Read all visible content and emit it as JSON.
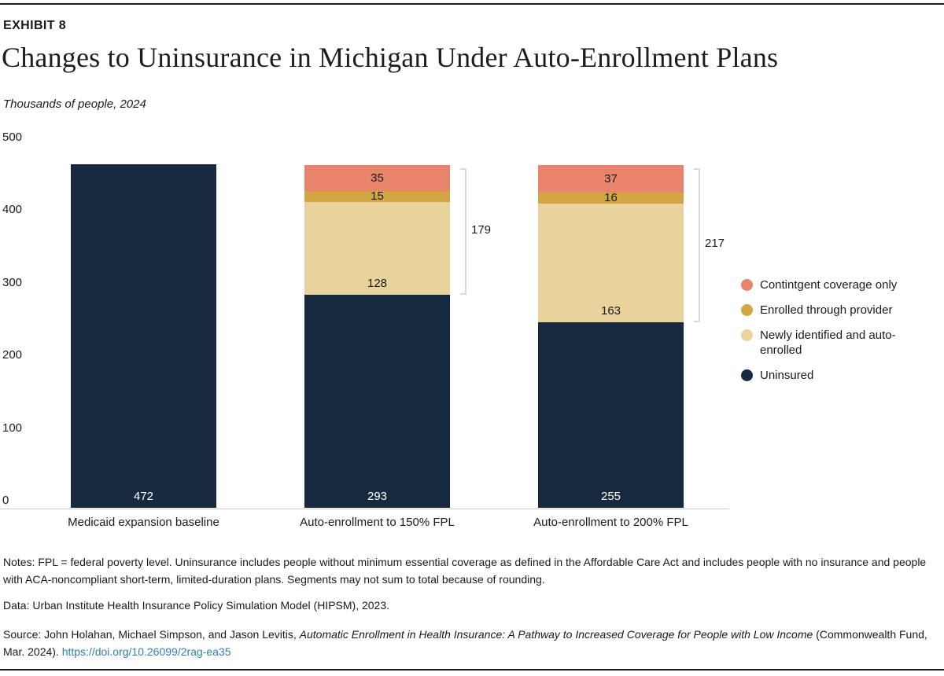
{
  "header": {
    "exhibit": "EXHIBIT 8",
    "title": "Changes to Uninsurance in Michigan Under Auto-Enrollment Plans",
    "subtitle": "Thousands of people, 2024"
  },
  "chart_data": {
    "type": "bar",
    "stacked": true,
    "title": "Changes to Uninsurance in Michigan Under Auto-Enrollment Plans",
    "units": "Thousands of people, 2024",
    "categories": [
      "Medicaid expansion baseline",
      "Auto-enrollment to 150% FPL",
      "Auto-enrollment to 200% FPL"
    ],
    "series": [
      {
        "name": "Uninsured",
        "color": "#17293f",
        "text_color": "#ffffff",
        "label_pos": "bottom",
        "values": [
          472,
          293,
          255
        ]
      },
      {
        "name": "Newly identified and auto-enrolled",
        "color": "#e8d39c",
        "text_color": "#1a1a1a",
        "label_pos": "bottom",
        "values": [
          null,
          128,
          163
        ]
      },
      {
        "name": "Enrolled through provider",
        "color": "#d1a643",
        "text_color": "#1a1a1a",
        "label_pos": "center",
        "values": [
          null,
          15,
          16
        ]
      },
      {
        "name": "Contintgent coverage only",
        "color": "#e9846c",
        "text_color": "#1a1a1a",
        "label_pos": "center",
        "values": [
          null,
          35,
          37
        ]
      }
    ],
    "brackets": [
      {
        "category_index": 1,
        "label": "179"
      },
      {
        "category_index": 2,
        "label": "217"
      }
    ],
    "ylim": [
      0,
      500
    ],
    "yticks": [
      0,
      100,
      200,
      300,
      400,
      500
    ],
    "grid": false,
    "legend_position": "right"
  },
  "legend": {
    "items": [
      {
        "label": "Contintgent coverage only",
        "color": "#e9846c"
      },
      {
        "label": "Enrolled through provider",
        "color": "#d1a643"
      },
      {
        "label": "Newly identified and auto-enrolled",
        "color": "#e8d39c"
      },
      {
        "label": "Uninsured",
        "color": "#17293f"
      }
    ]
  },
  "footer": {
    "notes": "Notes: FPL = federal poverty level. Uninsurance includes people without minimum essential coverage as defined in the Affordable Care Act and includes people with no insurance and people with ACA-noncompliant short-term, limited-duration plans. Segments may not sum to total because of rounding.",
    "data_line": "Data: Urban Institute Health Insurance Policy Simulation Model (HIPSM), 2023.",
    "source_prefix": "Source: John Holahan, Michael Simpson, and Jason Levitis, ",
    "source_title": "Automatic Enrollment in Health Insurance: A Pathway to Increased Coverage for People with Low Income",
    "source_suffix": " (Commonwealth Fund, Mar. 2024). ",
    "source_link": "https://doi.org/10.26099/2rag-ea35"
  },
  "colors": {
    "link": "#2f7fae",
    "rule": "#1a1a1a",
    "axis_line": "#cccccc",
    "bracket": "#d9d9d9"
  }
}
